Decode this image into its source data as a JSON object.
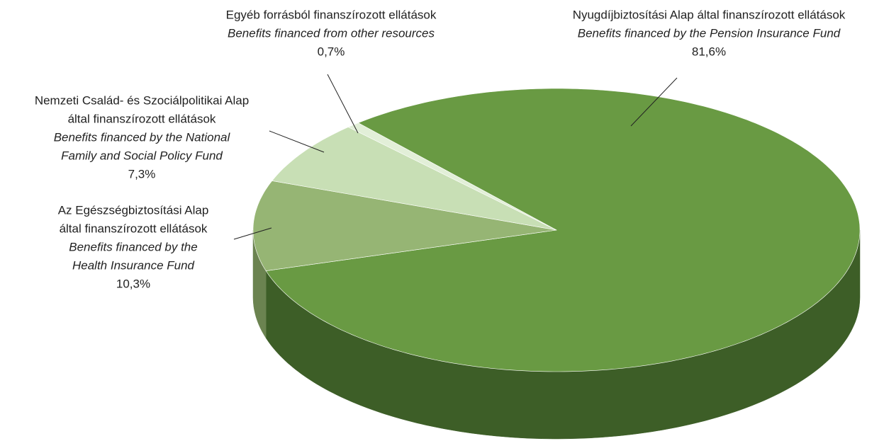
{
  "chart_data": {
    "type": "pie",
    "categories": [
      {
        "hu": [
          "Nyugdíjbiztosítási Alap által finanszírozott ellátások"
        ],
        "en": [
          "Benefits financed by the Pension Insurance Fund"
        ]
      },
      {
        "hu": [
          "Az Egészségbiztosítási Alap",
          "által finanszírozott ellátások"
        ],
        "en": [
          "Benefits financed by the",
          "Health Insurance Fund"
        ]
      },
      {
        "hu": [
          "Nemzeti Család- és Szociálpolitikai Alap",
          "által finanszírozott ellátások"
        ],
        "en": [
          "Benefits financed by the National",
          "Family and Social Policy Fund"
        ]
      },
      {
        "hu": [
          "Egyéb forrásból finanszírozott ellátások"
        ],
        "en": [
          "Benefits financed from other resources"
        ]
      }
    ],
    "values": [
      81.6,
      10.3,
      7.3,
      0.7
    ],
    "value_labels": [
      "81,6%",
      "10,3%",
      "7,3%",
      "0,7%"
    ],
    "colors": [
      "#699a43",
      "#96b574",
      "#c8dfb5",
      "#e2efd8"
    ],
    "side_colors": [
      "#3d5e27",
      "#6b8350",
      "#8da47c",
      "#a5b598"
    ]
  }
}
